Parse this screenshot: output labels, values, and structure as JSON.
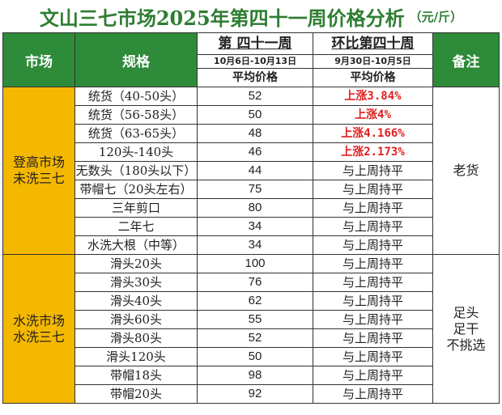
{
  "title": {
    "main": "文山三七市场2025年第四十一周价格分析",
    "unit": "（元/斤）"
  },
  "headers": {
    "market": "市场",
    "spec": "规格",
    "current_week": "第 四十一周",
    "current_dates": "10月6日-10月13日",
    "average_price": "平均价格",
    "compare_title": "环比第四十周",
    "compare_dates": "9月30日-10月5日",
    "compare_avg": "平均价格",
    "remark": "备注"
  },
  "groups": [
    {
      "market": "登高市场\n未洗三七",
      "remark": "老货",
      "rows": [
        {
          "spec": "统货（40-50头）",
          "price": "52",
          "change": "上涨3.84%",
          "up": true
        },
        {
          "spec": "统货（56-58头）",
          "price": "50",
          "change": "上涨4%",
          "up": true
        },
        {
          "spec": "统货（63-65头）",
          "price": "48",
          "change": "上涨4.166%",
          "up": true
        },
        {
          "spec": "120头-140头",
          "price": "46",
          "change": "上涨2.173%",
          "up": true
        },
        {
          "spec": "无数头（180头以下）",
          "price": "44",
          "change": "与上周持平",
          "up": false
        },
        {
          "spec": "带帽七（20头左右）",
          "price": "75",
          "change": "与上周持平",
          "up": false
        },
        {
          "spec": "三年剪口",
          "price": "80",
          "change": "与上周持平",
          "up": false
        },
        {
          "spec": "二年七",
          "price": "34",
          "change": "与上周持平",
          "up": false
        },
        {
          "spec": "水洗大根（中等）",
          "price": "34",
          "change": "与上周持平",
          "up": false
        }
      ]
    },
    {
      "market": "水洗市场\n水洗三七",
      "remark": "足头\n足干\n不挑选",
      "rows": [
        {
          "spec": "滑头20头",
          "price": "100",
          "change": "与上周持平",
          "up": false
        },
        {
          "spec": "滑头30头",
          "price": "76",
          "change": "与上周持平",
          "up": false
        },
        {
          "spec": "滑头40头",
          "price": "62",
          "change": "与上周持平",
          "up": false
        },
        {
          "spec": "滑头60头",
          "price": "55",
          "change": "与上周持平",
          "up": false
        },
        {
          "spec": "滑头80头",
          "price": "52",
          "change": "与上周持平",
          "up": false
        },
        {
          "spec": "滑头120头",
          "price": "50",
          "change": "与上周持平",
          "up": false
        },
        {
          "spec": "带帽18头",
          "price": "98",
          "change": "与上周持平",
          "up": false
        },
        {
          "spec": "带帽20头",
          "price": "92",
          "change": "与上周持平",
          "up": false
        }
      ]
    }
  ],
  "colors": {
    "title": "#2e7d32",
    "header_bg": "#2e8b3a",
    "market_bg": "#f5b800",
    "increase": "#e02020"
  }
}
